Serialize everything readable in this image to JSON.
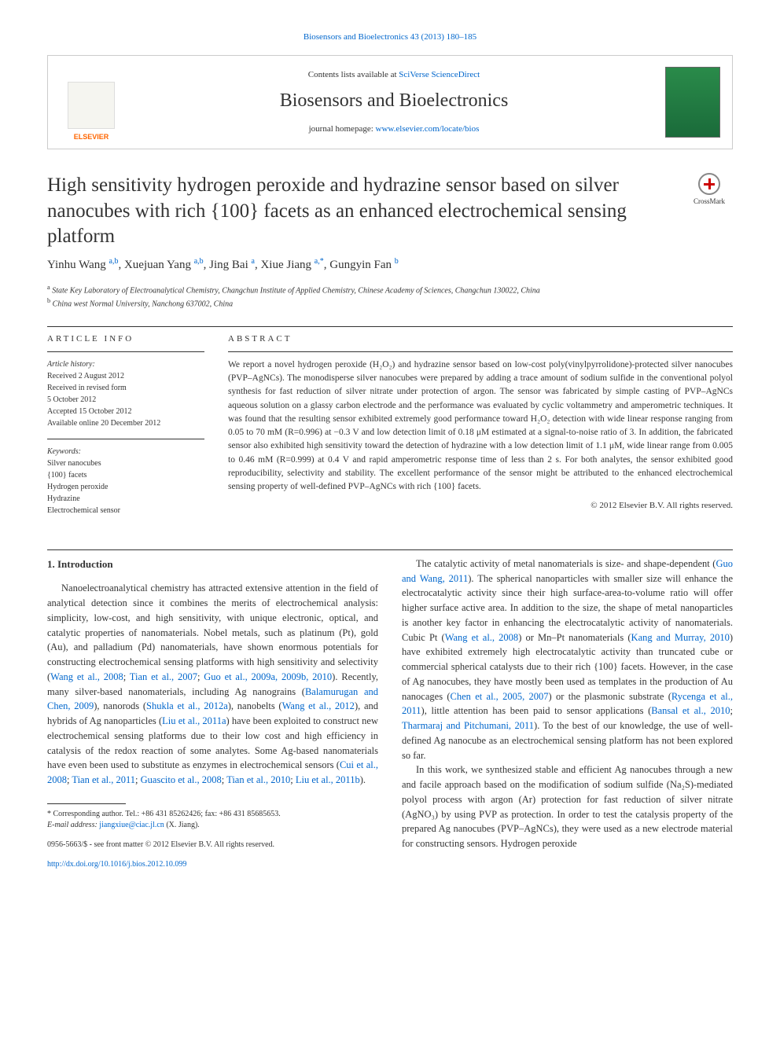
{
  "header": {
    "top_link_text": "Biosensors and Bioelectronics 43 (2013) 180–185",
    "sciverse_prefix": "Contents lists available at ",
    "sciverse_link": "SciVerse ScienceDirect",
    "journal_name": "Biosensors and Bioelectronics",
    "homepage_prefix": "journal homepage: ",
    "homepage_link": "www.elsevier.com/locate/bios",
    "elsevier_label": "ELSEVIER"
  },
  "crossmark_label": "CrossMark",
  "title": "High sensitivity hydrogen peroxide and hydrazine sensor based on silver nanocubes with rich {100} facets as an enhanced electrochemical sensing platform",
  "authors_html": "Yinhu Wang <sup>a,b</sup>, Xuejuan Yang <sup>a,b</sup>, Jing Bai <sup>a</sup>, Xiue Jiang <sup>a,*</sup>, Gungyin Fan <sup>b</sup>",
  "affiliations": {
    "a": "State Key Laboratory of Electroanalytical Chemistry, Changchun Institute of Applied Chemistry, Chinese Academy of Sciences, Changchun 130022, China",
    "b": "China west Normal University, Nanchong 637002, China"
  },
  "article_info": {
    "heading": "ARTICLE INFO",
    "history_label": "Article history:",
    "received": "Received 2 August 2012",
    "revised": "Received in revised form",
    "revised_date": "5 October 2012",
    "accepted": "Accepted 15 October 2012",
    "online": "Available online 20 December 2012",
    "keywords_label": "Keywords:",
    "keywords": [
      "Silver nanocubes",
      "{100} facets",
      "Hydrogen peroxide",
      "Hydrazine",
      "Electrochemical sensor"
    ]
  },
  "abstract": {
    "heading": "ABSTRACT",
    "text": "We report a novel hydrogen peroxide (H₂O₂) and hydrazine sensor based on low-cost poly(vinylpyrrolidone)-protected silver nanocubes (PVP–AgNCs). The monodisperse silver nanocubes were prepared by adding a trace amount of sodium sulfide in the conventional polyol synthesis for fast reduction of silver nitrate under protection of argon. The sensor was fabricated by simple casting of PVP–AgNCs aqueous solution on a glassy carbon electrode and the performance was evaluated by cyclic voltammetry and amperometric techniques. It was found that the resulting sensor exhibited extremely good performance toward H₂O₂ detection with wide linear response ranging from 0.05 to 70 mM (R=0.996) at −0.3 V and low detection limit of 0.18 μM estimated at a signal-to-noise ratio of 3. In addition, the fabricated sensor also exhibited high sensitivity toward the detection of hydrazine with a low detection limit of 1.1 μM, wide linear range from 0.005 to 0.46 mM (R=0.999) at 0.4 V and rapid amperometric response time of less than 2 s. For both analytes, the sensor exhibited good reproducibility, selectivity and stability. The excellent performance of the sensor might be attributed to the enhanced electrochemical sensing property of well-defined PVP–AgNCs with rich {100} facets.",
    "copyright": "© 2012 Elsevier B.V. All rights reserved."
  },
  "body": {
    "intro_heading": "1. Introduction",
    "col1_p1": "Nanoelectroanalytical chemistry has attracted extensive attention in the field of analytical detection since it combines the merits of electrochemical analysis: simplicity, low-cost, and high sensitivity, with unique electronic, optical, and catalytic properties of nanomaterials. Nobel metals, such as platinum (Pt), gold (Au), and palladium (Pd) nanomaterials, have shown enormous potentials for constructing electrochemical sensing platforms with high sensitivity and selectivity (Wang et al., 2008; Tian et al., 2007; Guo et al., 2009a, 2009b, 2010). Recently, many silver-based nanomaterials, including Ag nanograins (Balamurugan and Chen, 2009), nanorods (Shukla et al., 2012a), nanobelts (Wang et al., 2012), and hybrids of Ag nanoparticles (Liu et al., 2011a) have been exploited to construct new electrochemical sensing platforms due to their low cost and high efficiency in catalysis of the redox reaction of some analytes. Some Ag-based nanomaterials have even been used to substitute as enzymes in electrochemical sensors (Cui et al., 2008; Tian et al., 2011; Guascito et al., 2008; Tian et al., 2010; Liu et al., 2011b).",
    "col2_p1": "The catalytic activity of metal nanomaterials is size- and shape-dependent (Guo and Wang, 2011). The spherical nanoparticles with smaller size will enhance the electrocatalytic activity since their high surface-area-to-volume ratio will offer higher surface active area. In addition to the size, the shape of metal nanoparticles is another key factor in enhancing the electrocatalytic activity of nanomaterials. Cubic Pt (Wang et al., 2008) or Mn–Pt nanomaterials (Kang and Murray, 2010) have exhibited extremely high electrocatalytic activity than truncated cube or commercial spherical catalysts due to their rich {100} facets. However, in the case of Ag nanocubes, they have mostly been used as templates in the production of Au nanocages (Chen et al., 2005, 2007) or the plasmonic substrate (Rycenga et al., 2011), little attention has been paid to sensor applications (Bansal et al., 2010; Tharmaraj and Pitchumani, 2011). To the best of our knowledge, the use of well-defined Ag nanocube as an electrochemical sensing platform has not been explored so far.",
    "col2_p2": "In this work, we synthesized stable and efficient Ag nanocubes through a new and facile approach based on the modification of sodium sulfide (Na₂S)-mediated polyol process with argon (Ar) protection for fast reduction of silver nitrate (AgNO₃) by using PVP as protection. In order to test the catalysis property of the prepared Ag nanocubes (PVP–AgNCs), they were used as a new electrode material for constructing sensors. Hydrogen peroxide"
  },
  "footnote": {
    "corresponding": "* Corresponding author. Tel.: +86 431 85262426; fax: +86 431 85685653.",
    "email_label": "E-mail address: ",
    "email": "jiangxiue@ciac.jl.cn",
    "email_suffix": " (X. Jiang)."
  },
  "footer": {
    "issn": "0956-5663/$ - see front matter © 2012 Elsevier B.V. All rights reserved.",
    "doi": "http://dx.doi.org/10.1016/j.bios.2012.10.099"
  },
  "colors": {
    "link": "#0066cc",
    "elsevier_orange": "#ff6600",
    "cover_green_top": "#2a8b4a",
    "cover_green_bottom": "#1a6b3a"
  }
}
